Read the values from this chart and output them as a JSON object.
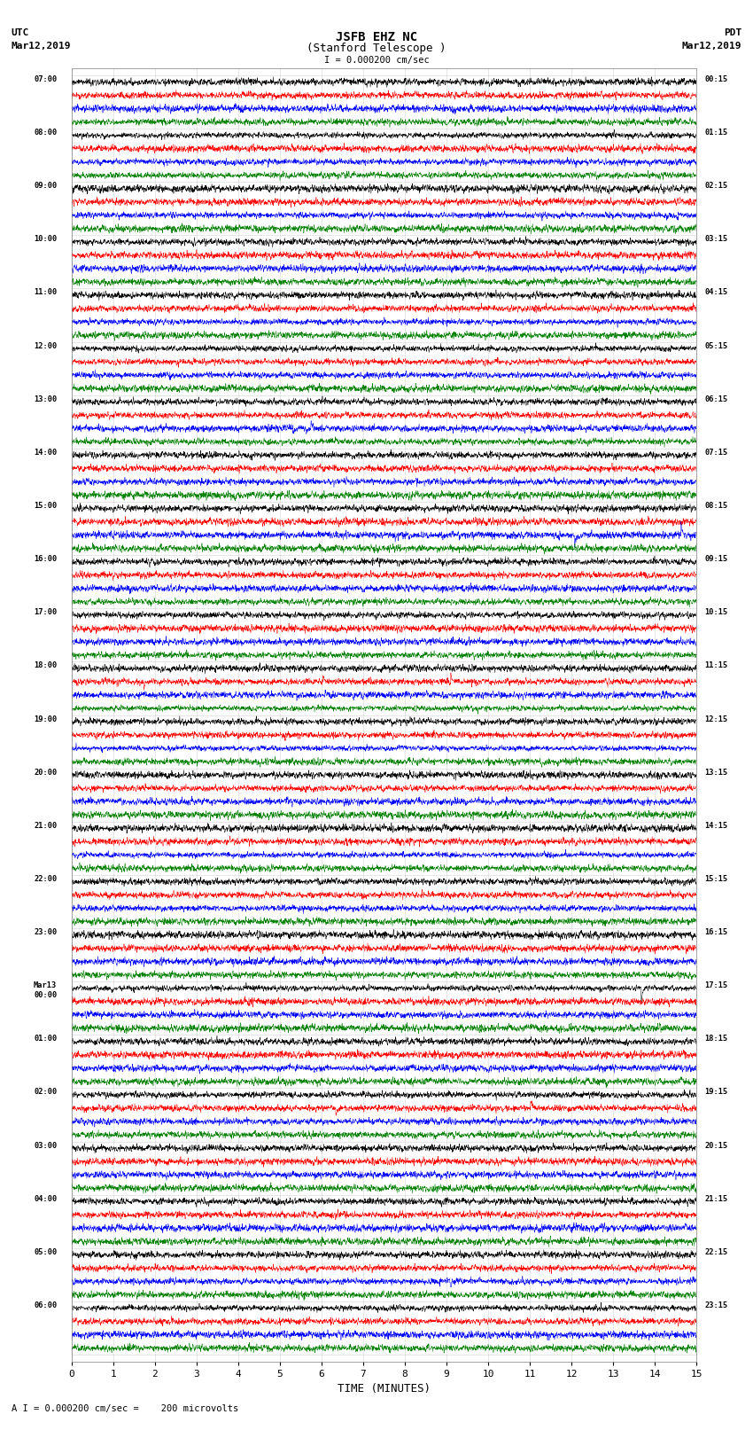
{
  "title_line1": "JSFB EHZ NC",
  "title_line2": "(Stanford Telescope )",
  "scale_label": "I = 0.000200 cm/sec",
  "footer_label": "A I = 0.000200 cm/sec =    200 microvolts",
  "left_header_line1": "UTC",
  "left_header_line2": "Mar12,2019",
  "right_header_line1": "PDT",
  "right_header_line2": "Mar12,2019",
  "xlabel": "TIME (MINUTES)",
  "utc_labels": [
    "07:00",
    "08:00",
    "09:00",
    "10:00",
    "11:00",
    "12:00",
    "13:00",
    "14:00",
    "15:00",
    "16:00",
    "17:00",
    "18:00",
    "19:00",
    "20:00",
    "21:00",
    "22:00",
    "23:00",
    "Mar13\n00:00",
    "01:00",
    "02:00",
    "03:00",
    "04:00",
    "05:00",
    "06:00"
  ],
  "pdt_labels": [
    "00:15",
    "01:15",
    "02:15",
    "03:15",
    "04:15",
    "05:15",
    "06:15",
    "07:15",
    "08:15",
    "09:15",
    "10:15",
    "11:15",
    "12:15",
    "13:15",
    "14:15",
    "15:15",
    "16:15",
    "17:15",
    "18:15",
    "19:15",
    "20:15",
    "21:15",
    "22:15",
    "23:15"
  ],
  "n_rows": 24,
  "traces_per_row": 4,
  "colors": [
    "black",
    "red",
    "blue",
    "green"
  ],
  "bg_color": "white",
  "fig_width": 8.5,
  "fig_height": 16.13,
  "dpi": 100,
  "minutes": 15,
  "amplitude": 0.42,
  "noise_seed": 42,
  "n_points": 3000,
  "grid_color": "#aaaaaa",
  "grid_alpha": 0.5,
  "grid_lw": 0.4
}
